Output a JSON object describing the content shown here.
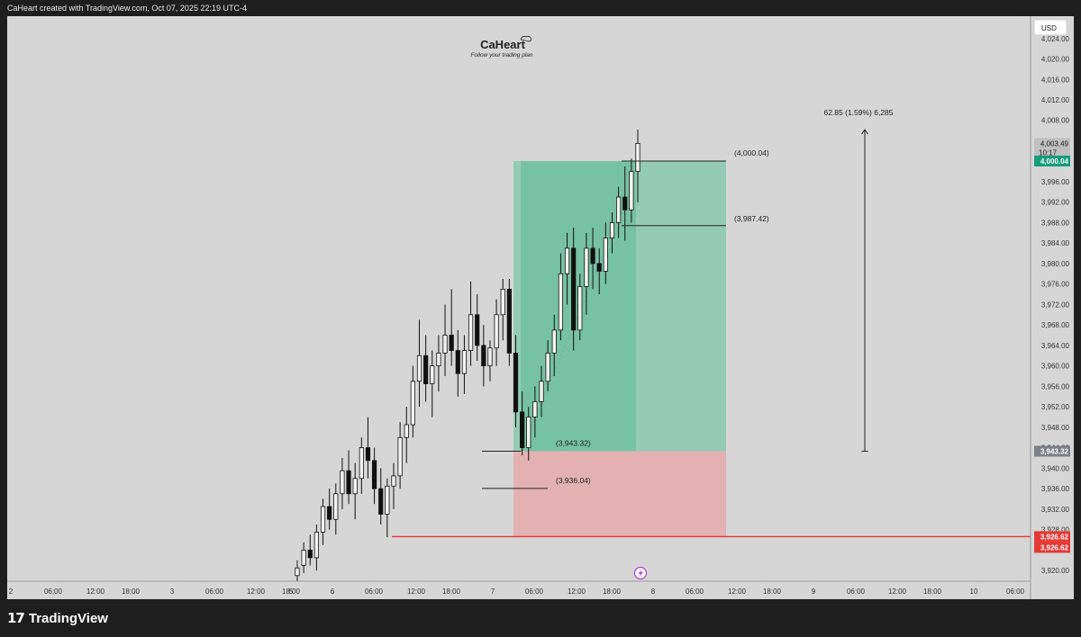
{
  "header": {
    "text": "CaHeart created with TradingView.com, Oct 07, 2025 22:19 UTC-4"
  },
  "brand": {
    "name": "CaHeart",
    "tagline": "Follow your trading plan"
  },
  "footer": {
    "logo_mark": "17",
    "logo_text": "TradingView"
  },
  "price_axis": {
    "currency": "USD",
    "ticks": [
      "4,024.00",
      "4,020.00",
      "4,016.00",
      "4,012.00",
      "4,008.00",
      "3,996.00",
      "3,992.00",
      "3,988.00",
      "3,984.00",
      "3,980.00",
      "3,976.00",
      "3,972.00",
      "3,968.00",
      "3,964.00",
      "3,960.00",
      "3,956.00",
      "3,952.00",
      "3,948.00",
      "3,944.00",
      "3,940.00",
      "3,936.00",
      "3,932.00",
      "3,928.00",
      "3,920.00"
    ],
    "last_price": "4,003.49",
    "countdown": "10:17",
    "target_badge": "4,000.04",
    "entry_badge": "3,943.32",
    "stop_badge_a": "3,926.62",
    "stop_badge_b": "3,926.62"
  },
  "time_axis": {
    "ticks": [
      "2",
      "06:00",
      "12:00",
      "18:00",
      "3",
      "06:00",
      "12:00",
      "18:00",
      "5",
      "6",
      "06:00",
      "12:00",
      "18:00",
      "7",
      "06:00",
      "12:00",
      "18:00",
      "8",
      "06:00",
      "12:00",
      "18:00",
      "9",
      "06:00",
      "12:00",
      "18:00",
      "10",
      "06:00"
    ]
  },
  "chart_data": {
    "type": "candlestick",
    "ylim": [
      3917.5,
      4027
    ],
    "annotations": {
      "target_label": "(4,000.04)",
      "target": 4000.04,
      "mid_label": "(3,987.42)",
      "mid": 3987.42,
      "entry_label": "(3,943.32)",
      "entry": 3943.32,
      "stop_label": "(3,936.04)",
      "stop": 3936.04,
      "stop_line": 3926.62,
      "measure_label": "62.85 (1.59%) 6,285",
      "measure_from": 3943.32,
      "measure_to": 4006.17
    },
    "colors": {
      "profit_zone": "#88c9b2",
      "profit_zone_dark": "#6fc0a4",
      "loss_zone": "#e3b1b1",
      "stop_line": "#e53935",
      "target_badge": "#169e7c",
      "entry_badge": "#7c8088",
      "stop_badge": "#e53935"
    },
    "ohlc": [
      [
        3919.0,
        3922.0,
        3918.0,
        3920.5
      ],
      [
        3921.0,
        3925.5,
        3919.5,
        3924.0
      ],
      [
        3924.0,
        3927.0,
        3921.0,
        3922.5
      ],
      [
        3922.5,
        3929.0,
        3920.0,
        3927.5
      ],
      [
        3927.5,
        3934.0,
        3925.0,
        3932.5
      ],
      [
        3932.5,
        3936.0,
        3928.0,
        3930.0
      ],
      [
        3930.0,
        3937.0,
        3927.0,
        3935.0
      ],
      [
        3935.0,
        3942.0,
        3932.0,
        3939.5
      ],
      [
        3939.5,
        3943.5,
        3933.0,
        3935.0
      ],
      [
        3935.0,
        3941.0,
        3930.0,
        3938.0
      ],
      [
        3938.0,
        3946.0,
        3935.0,
        3944.0
      ],
      [
        3944.0,
        3950.0,
        3938.0,
        3941.5
      ],
      [
        3941.5,
        3944.0,
        3933.0,
        3936.0
      ],
      [
        3936.0,
        3940.0,
        3929.0,
        3931.0
      ],
      [
        3931.0,
        3938.0,
        3926.5,
        3936.5
      ],
      [
        3936.5,
        3941.0,
        3932.0,
        3938.5
      ],
      [
        3938.5,
        3949.0,
        3936.0,
        3946.0
      ],
      [
        3946.0,
        3952.0,
        3941.0,
        3948.5
      ],
      [
        3948.5,
        3960.0,
        3946.0,
        3957.0
      ],
      [
        3957.0,
        3969.0,
        3952.0,
        3962.0
      ],
      [
        3962.0,
        3966.0,
        3953.0,
        3956.5
      ],
      [
        3956.5,
        3963.0,
        3950.0,
        3960.0
      ],
      [
        3960.0,
        3966.0,
        3955.0,
        3962.5
      ],
      [
        3962.5,
        3972.0,
        3958.0,
        3966.0
      ],
      [
        3966.0,
        3975.0,
        3960.0,
        3963.0
      ],
      [
        3963.0,
        3967.0,
        3954.0,
        3958.5
      ],
      [
        3958.5,
        3966.0,
        3954.5,
        3963.0
      ],
      [
        3963.0,
        3976.5,
        3960.0,
        3970.0
      ],
      [
        3970.0,
        3974.0,
        3961.0,
        3964.0
      ],
      [
        3964.0,
        3968.0,
        3956.0,
        3960.0
      ],
      [
        3960.0,
        3965.0,
        3957.0,
        3963.5
      ],
      [
        3963.5,
        3973.0,
        3960.0,
        3970.0
      ],
      [
        3970.0,
        3977.0,
        3965.0,
        3975.0
      ],
      [
        3975.0,
        3977.0,
        3960.0,
        3962.5
      ],
      [
        3962.5,
        3966.0,
        3948.0,
        3951.0
      ],
      [
        3951.0,
        3955.0,
        3942.5,
        3944.0
      ],
      [
        3944.0,
        3952.0,
        3941.5,
        3950.0
      ],
      [
        3950.0,
        3956.0,
        3946.0,
        3953.0
      ],
      [
        3953.0,
        3960.0,
        3950.0,
        3957.0
      ],
      [
        3957.0,
        3965.0,
        3955.0,
        3962.5
      ],
      [
        3962.5,
        3970.0,
        3958.0,
        3967.0
      ],
      [
        3967.0,
        3982.0,
        3965.0,
        3978.0
      ],
      [
        3978.0,
        3986.0,
        3972.0,
        3983.0
      ],
      [
        3983.0,
        3987.0,
        3963.0,
        3967.0
      ],
      [
        3967.0,
        3978.0,
        3965.0,
        3975.5
      ],
      [
        3975.5,
        3986.0,
        3970.0,
        3983.0
      ],
      [
        3983.0,
        3987.0,
        3975.0,
        3980.0
      ],
      [
        3980.0,
        3983.0,
        3974.0,
        3978.5
      ],
      [
        3978.5,
        3988.0,
        3976.0,
        3985.0
      ],
      [
        3985.0,
        3990.0,
        3982.0,
        3988.0
      ],
      [
        3988.0,
        3995.0,
        3985.0,
        3993.0
      ],
      [
        3993.0,
        3999.0,
        3984.5,
        3990.5
      ],
      [
        3990.5,
        4000.5,
        3988.0,
        3998.0
      ],
      [
        3998.0,
        4006.2,
        3992.0,
        4003.49
      ]
    ]
  }
}
